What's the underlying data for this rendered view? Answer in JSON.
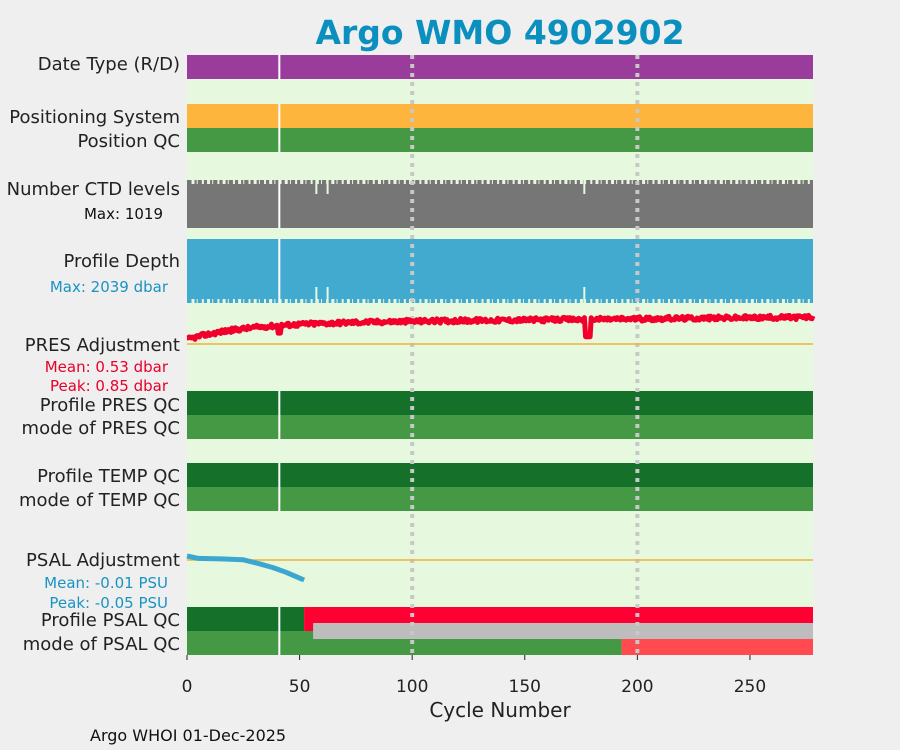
{
  "chart_data": {
    "type": "bar",
    "title": "Argo WMO 4902902",
    "xlabel": "Cycle Number",
    "xlim": [
      0,
      278
    ],
    "xticks": [
      0,
      50,
      100,
      150,
      200,
      250
    ],
    "xtick_labels": [
      "0",
      "50",
      "100",
      "150",
      "200",
      "250"
    ],
    "grid_x": [
      100,
      200
    ],
    "gap_cycle": 41,
    "footer": "Argo WHOI 01-Dec-2025",
    "colors": {
      "title": "#0b8fbf",
      "background": "#e6f8de",
      "date_type": "#9a3c9b",
      "positioning": "#fdb53d",
      "qc_good_dark": "#15702a",
      "qc_good": "#459945",
      "ctd": "#767676",
      "depth": "#42a9cf",
      "pres_line": "#f2002b",
      "pres_text": "#e8002b",
      "psal_line": "#3ba7d0",
      "psal_text": "#1a93c2",
      "zero_line": "#f0b23a",
      "bad": "#ff0033",
      "bad_light": "#ff4a50",
      "missing": "#bdbdbd"
    },
    "rows": {
      "date_type": {
        "label": "Date Type (R/D)"
      },
      "positioning": {
        "label": "Positioning System"
      },
      "position_qc": {
        "label": "Position QC"
      },
      "ctd_levels": {
        "label": "Number CTD levels",
        "max_label": "Max: 1019",
        "max": 1019
      },
      "profile_depth": {
        "label": "Profile Depth",
        "max_label": "Max: 2039 dbar",
        "max": 2039
      },
      "pres_adjustment": {
        "label": "PRES Adjustment",
        "mean_label": "Mean: 0.53 dbar",
        "peak_label": "Peak: 0.85 dbar",
        "mean": 0.53,
        "peak": 0.85
      },
      "profile_pres_qc": {
        "label": "Profile PRES QC"
      },
      "mode_pres_qc": {
        "label": "mode of PRES QC"
      },
      "profile_temp_qc": {
        "label": "Profile TEMP QC"
      },
      "mode_temp_qc": {
        "label": "mode of TEMP QC"
      },
      "psal_adjustment": {
        "label": "PSAL Adjustment",
        "mean_label": "Mean: -0.01 PSU",
        "peak_label": "Peak: -0.05 PSU",
        "mean": -0.01,
        "peak": -0.05
      },
      "profile_psal_qc": {
        "label": "Profile PSAL QC",
        "segments": [
          {
            "start": 0,
            "end": 52,
            "state": "good"
          },
          {
            "start": 52,
            "end": 278,
            "state": "bad"
          }
        ]
      },
      "mode_psal_qc": {
        "label": "mode of PSAL QC",
        "segments": [
          {
            "start": 0,
            "end": 193,
            "state": "good"
          },
          {
            "start": 193,
            "end": 278,
            "state": "bad"
          }
        ],
        "missing_band": {
          "start": 56,
          "end": 278
        }
      }
    },
    "psal_series": {
      "x": [
        0,
        5,
        15,
        25,
        32,
        38,
        44,
        48,
        52
      ],
      "y": [
        0.0,
        -0.005,
        -0.006,
        -0.008,
        -0.016,
        -0.024,
        -0.034,
        -0.042,
        -0.05
      ]
    }
  }
}
